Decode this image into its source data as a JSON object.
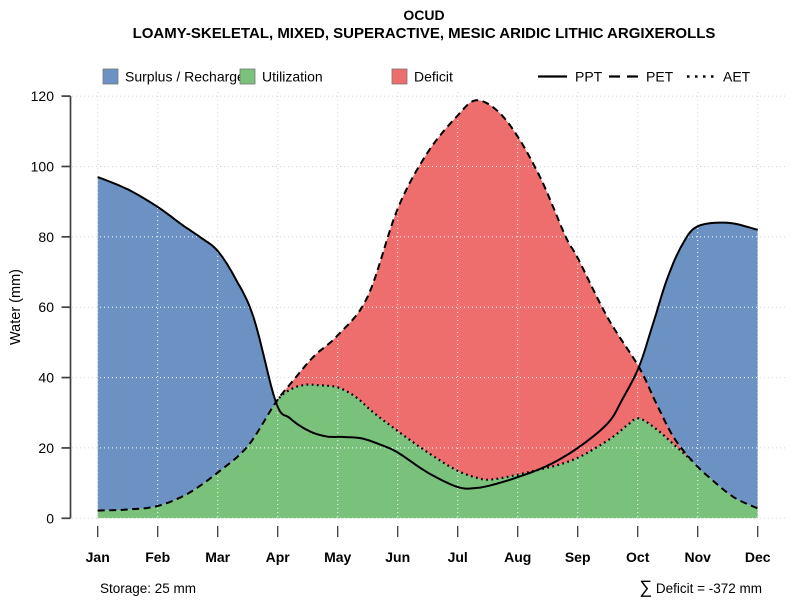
{
  "title": "OCUD",
  "subtitle": "LOAMY-SKELETAL, MIXED, SUPERACTIVE, MESIC ARIDIC LITHIC ARGIXEROLLS",
  "colors": {
    "surplus": "#6C92C4",
    "utilization": "#7AC17C",
    "deficit": "#EE6D6D",
    "curve": "#000000",
    "grid_margin": "#D5D5D5",
    "grid_over_fill": "#FFFFFF",
    "axis": "#3F3F3F"
  },
  "legend": {
    "fills": [
      {
        "label": "Surplus / Recharge",
        "color_key": "surplus"
      },
      {
        "label": "Utilization",
        "color_key": "utilization"
      },
      {
        "label": "Deficit",
        "color_key": "deficit"
      }
    ],
    "lines": [
      {
        "label": "PPT",
        "style": "solid"
      },
      {
        "label": "PET",
        "style": "dashed"
      },
      {
        "label": "AET",
        "style": "dotted"
      }
    ]
  },
  "axes": {
    "y": {
      "label": "Water (mm)",
      "ticks": [
        "0",
        "20",
        "40",
        "60",
        "80",
        "100",
        "120"
      ],
      "min": 0,
      "max": 120
    },
    "x": {
      "label": ""
    }
  },
  "annotations": {
    "storage": "Storage: 25 mm",
    "deficit_sigma": "∑",
    "deficit_text": " Deficit = -372 mm"
  },
  "chart_data": {
    "type": "area",
    "title": "OCUD",
    "subtitle": "LOAMY-SKELETAL, MIXED, SUPERACTIVE, MESIC ARIDIC LITHIC ARGIXEROLLS",
    "ylabel": "Water (mm)",
    "ylim": [
      0,
      120
    ],
    "grid": "dotted",
    "legend_position": "top",
    "categories": [
      "Jan",
      "Feb",
      "Mar",
      "Apr",
      "May",
      "Jun",
      "Jul",
      "Aug",
      "Sep",
      "Oct",
      "Nov",
      "Dec"
    ],
    "storage_mm": 25,
    "deficit_sum_mm": -372,
    "series": [
      {
        "name": "PPT",
        "monthly_mm": [
          97,
          88.5,
          76,
          32.5,
          23,
          19,
          9,
          12,
          20,
          43,
          83,
          82
        ]
      },
      {
        "name": "PET",
        "monthly_mm": [
          2,
          3.5,
          13,
          33.5,
          52,
          88,
          115,
          108,
          74,
          43,
          15,
          3
        ]
      },
      {
        "name": "AET",
        "monthly_mm": [
          2,
          3.5,
          13,
          33,
          37,
          25,
          12.5,
          12,
          17,
          28.5,
          15,
          3
        ]
      }
    ],
    "areas": [
      {
        "name": "Surplus / Recharge",
        "between": [
          "PET",
          "PPT"
        ],
        "where": "PPT > PET"
      },
      {
        "name": "Utilization",
        "between": [
          "0",
          "AET"
        ]
      },
      {
        "name": "Deficit",
        "between": [
          "AET",
          "PET"
        ]
      }
    ],
    "draw": {
      "ppt": [
        [
          0,
          97
        ],
        [
          0.5,
          93.5
        ],
        [
          1,
          88.5
        ],
        [
          1.4,
          83.5
        ],
        [
          1.7,
          80
        ],
        [
          2,
          76
        ],
        [
          2.3,
          68
        ],
        [
          2.6,
          57
        ],
        [
          2.97,
          33
        ],
        [
          3.2,
          28.5
        ],
        [
          3.5,
          25
        ],
        [
          3.8,
          23.3
        ],
        [
          4.1,
          23.1
        ],
        [
          4.4,
          22.7
        ],
        [
          4.7,
          21
        ],
        [
          5,
          18.7
        ],
        [
          5.5,
          13
        ],
        [
          6,
          8.9
        ],
        [
          6.3,
          8.6
        ],
        [
          6.6,
          9.6
        ],
        [
          7,
          11.7
        ],
        [
          7.5,
          15
        ],
        [
          8,
          20
        ],
        [
          8.5,
          27
        ],
        [
          8.75,
          34
        ],
        [
          9.02,
          43
        ],
        [
          9.25,
          55
        ],
        [
          9.5,
          68.5
        ],
        [
          9.75,
          78
        ],
        [
          10,
          83
        ],
        [
          10.5,
          84
        ],
        [
          11,
          82
        ]
      ],
      "pet": [
        [
          0,
          2.2
        ],
        [
          0.5,
          2.5
        ],
        [
          1,
          3.5
        ],
        [
          1.5,
          7
        ],
        [
          2,
          13
        ],
        [
          2.5,
          20.5
        ],
        [
          2.97,
          33
        ],
        [
          3.25,
          39
        ],
        [
          3.6,
          46
        ],
        [
          4,
          52
        ],
        [
          4.5,
          63
        ],
        [
          5,
          88
        ],
        [
          5.5,
          104
        ],
        [
          6,
          114.5
        ],
        [
          6.3,
          118.8
        ],
        [
          6.65,
          116
        ],
        [
          7,
          108.5
        ],
        [
          7.4,
          96
        ],
        [
          7.8,
          80
        ],
        [
          8,
          74
        ],
        [
          8.5,
          57
        ],
        [
          9.02,
          43
        ],
        [
          9.3,
          33
        ],
        [
          9.6,
          23
        ],
        [
          9.92,
          16.1
        ],
        [
          10.2,
          11.5
        ],
        [
          10.6,
          6
        ],
        [
          11,
          2.8
        ]
      ],
      "aet": [
        [
          0,
          2.2
        ],
        [
          0.5,
          2.5
        ],
        [
          1,
          3.5
        ],
        [
          1.5,
          7
        ],
        [
          2,
          13
        ],
        [
          2.5,
          20.5
        ],
        [
          2.97,
          33
        ],
        [
          3.2,
          36.5
        ],
        [
          3.45,
          37.9
        ],
        [
          3.7,
          37.8
        ],
        [
          4,
          37.2
        ],
        [
          4.3,
          34.5
        ],
        [
          4.6,
          30
        ],
        [
          5,
          24.8
        ],
        [
          5.35,
          20.5
        ],
        [
          5.7,
          16.5
        ],
        [
          6,
          13.5
        ],
        [
          6.3,
          11.6
        ],
        [
          6.55,
          11
        ],
        [
          7,
          12.4
        ],
        [
          7.4,
          14
        ],
        [
          7.7,
          15.3
        ],
        [
          8,
          17.2
        ],
        [
          8.3,
          20
        ],
        [
          8.6,
          23.3
        ],
        [
          8.85,
          26.8
        ],
        [
          9.02,
          28.4
        ],
        [
          9.3,
          25.5
        ],
        [
          9.6,
          21
        ],
        [
          9.92,
          16.1
        ],
        [
          10.2,
          11.5
        ],
        [
          10.6,
          6
        ],
        [
          11,
          2.8
        ]
      ],
      "cross_left": 2.97,
      "cross_right": 9.02,
      "aet_rejoin": 9.92
    }
  }
}
